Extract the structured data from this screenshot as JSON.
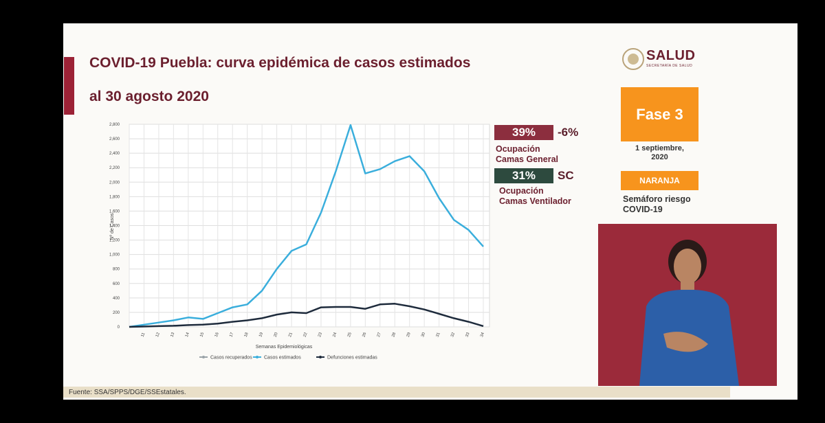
{
  "chart_data": {
    "type": "line",
    "title": "COVID-19 Puebla: curva epidémica de casos estimados",
    "subtitle": "al 30 agosto 2020",
    "x_label": "Semanas Epidemiológicas",
    "y_label": "Nº de Casos",
    "categories": [
      null,
      "11",
      "12",
      "13",
      "14",
      "15",
      "16",
      "17",
      "18",
      "19",
      "20",
      "21",
      "22",
      "23",
      "24",
      "25",
      "26",
      "27",
      "28",
      "29",
      "30",
      "31",
      "32",
      "33",
      "34"
    ],
    "series": [
      {
        "name": "Casos recuperados",
        "color": "#9aa3a8",
        "values": [
          null,
          null,
          null,
          null,
          null,
          null,
          null,
          null,
          null,
          null,
          null,
          null,
          null,
          null,
          null,
          null,
          null,
          null,
          null,
          null,
          null,
          null,
          null,
          null,
          null
        ]
      },
      {
        "name": "Casos estimados",
        "color": "#3aaedc",
        "values": [
          0,
          30,
          60,
          90,
          130,
          110,
          190,
          270,
          310,
          500,
          800,
          1050,
          1140,
          1580,
          2150,
          2790,
          2120,
          2180,
          2290,
          2360,
          2150,
          1780,
          1480,
          1340,
          1110
        ]
      },
      {
        "name": "Defunciones estimadas",
        "color": "#1e2b3c",
        "values": [
          0,
          5,
          10,
          15,
          25,
          30,
          45,
          70,
          90,
          120,
          170,
          200,
          190,
          270,
          275,
          275,
          250,
          310,
          320,
          285,
          240,
          180,
          120,
          70,
          10
        ]
      }
    ],
    "ylim": [
      0,
      2800
    ],
    "yticks": [
      0,
      200,
      400,
      600,
      800,
      {
        "value": 1000,
        "label": "1,000"
      },
      {
        "value": 1200,
        "label": "1,200"
      },
      {
        "value": 1400,
        "label": "1,400"
      },
      {
        "value": 1600,
        "label": "1,600"
      },
      {
        "value": 1800,
        "label": "1,800"
      },
      {
        "value": 2000,
        "label": "2,000"
      },
      {
        "value": 2200,
        "label": "2,200"
      },
      {
        "value": 2400,
        "label": "2,400"
      },
      {
        "value": 2600,
        "label": "2,600"
      },
      {
        "value": 2800,
        "label": "2,800"
      }
    ],
    "grid": true,
    "legend_position": "bottom"
  },
  "header": {
    "logo": "SALUD",
    "logo_subtitle": "SECRETARÍA DE SALUD"
  },
  "indicators": [
    {
      "value": "39%",
      "change": "-6%",
      "label_lines": [
        "Ocupación",
        "Camas General"
      ]
    },
    {
      "value": "31%",
      "change": "SC",
      "label_lines": [
        "Ocupación",
        "Camas Ventilador"
      ]
    }
  ],
  "phase": {
    "label": "Fase 3",
    "date_lines": [
      "1 septiembre,",
      "2020"
    ]
  },
  "semaforo": {
    "color_label": "NARANJA",
    "caption_lines": [
      "Semáforo riesgo",
      "COVID-19"
    ]
  },
  "footer": {
    "source": "Fuente: SSA/SPPS/DGE/SSEstatales."
  }
}
